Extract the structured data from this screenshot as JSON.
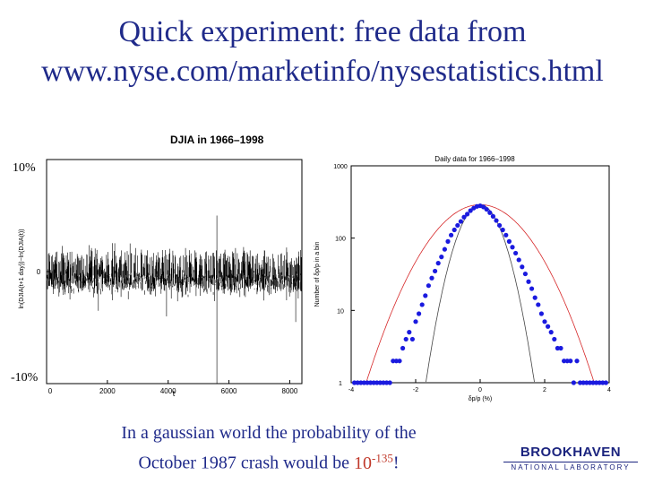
{
  "slide": {
    "title_line1": "Quick experiment: free data from",
    "title_line2": "www.nyse.com/marketinfo/nysestatistics.html",
    "label_top": "10%",
    "label_bottom": "-10%",
    "caption_line1": "In a gaussian world the probability of the",
    "caption_line2_pre": "October 1987 crash would be",
    "caption_base": "10",
    "caption_exp": "-135",
    "caption_bang": "!",
    "logo_main": "BROOKHAVEN",
    "logo_sub": "NATIONAL LABORATORY"
  },
  "chart_data": [
    {
      "type": "line",
      "title": "DJIA in 1966–1998",
      "xlabel": "t",
      "ylabel": "ln(DJIA(t+1 day))−ln(DJIA(t))",
      "xlim": [
        0,
        8400
      ],
      "ylim": [
        -0.1,
        0.1
      ],
      "x_ticks": [
        0,
        2000,
        4000,
        6000,
        8000
      ],
      "x_tick_labels": [
        "0",
        "2000",
        "4000",
        "6000",
        "8000"
      ],
      "y_ticks": [
        0
      ],
      "y_tick_labels": [
        "0"
      ],
      "series_summary": "daily log returns, noise of amplitude about ±0.02 with spikes; largest drop near t=5600",
      "notable_points": [
        {
          "x": 5600,
          "y": -0.1
        },
        {
          "x": 5600,
          "y": 0.05
        },
        {
          "x": 3950,
          "y": -0.04
        },
        {
          "x": 1700,
          "y": -0.035
        },
        {
          "x": 8200,
          "y": -0.045
        }
      ]
    },
    {
      "type": "scatter",
      "title": "Daily data for 1966–1998",
      "xlabel": "δp/p (%)",
      "ylabel": "Number of δp/p in a bin",
      "xlim": [
        -4,
        4
      ],
      "ylim": [
        1,
        1000
      ],
      "yscale": "log",
      "x_ticks": [
        -4,
        -2,
        0,
        2,
        4
      ],
      "x_tick_labels": [
        "-4",
        "-2",
        "0",
        "2",
        "4"
      ],
      "y_ticks": [
        1,
        10,
        100,
        1000
      ],
      "y_tick_labels": [
        "1",
        "10",
        "100",
        "1000"
      ],
      "points": [
        {
          "x": -3.9,
          "y": 1
        },
        {
          "x": -3.8,
          "y": 1
        },
        {
          "x": -3.7,
          "y": 1
        },
        {
          "x": -3.6,
          "y": 1
        },
        {
          "x": -3.5,
          "y": 1
        },
        {
          "x": -3.4,
          "y": 1
        },
        {
          "x": -3.3,
          "y": 1
        },
        {
          "x": -3.2,
          "y": 1
        },
        {
          "x": -3.1,
          "y": 1
        },
        {
          "x": -3.0,
          "y": 1
        },
        {
          "x": -2.9,
          "y": 1
        },
        {
          "x": -2.8,
          "y": 1
        },
        {
          "x": -2.7,
          "y": 2
        },
        {
          "x": -2.6,
          "y": 2
        },
        {
          "x": -2.5,
          "y": 2
        },
        {
          "x": -2.4,
          "y": 3
        },
        {
          "x": -2.3,
          "y": 4
        },
        {
          "x": -2.2,
          "y": 5
        },
        {
          "x": -2.1,
          "y": 4
        },
        {
          "x": -2.0,
          "y": 7
        },
        {
          "x": -1.9,
          "y": 9
        },
        {
          "x": -1.8,
          "y": 12
        },
        {
          "x": -1.7,
          "y": 16
        },
        {
          "x": -1.6,
          "y": 22
        },
        {
          "x": -1.5,
          "y": 28
        },
        {
          "x": -1.4,
          "y": 35
        },
        {
          "x": -1.3,
          "y": 45
        },
        {
          "x": -1.2,
          "y": 55
        },
        {
          "x": -1.1,
          "y": 70
        },
        {
          "x": -1.0,
          "y": 90
        },
        {
          "x": -0.9,
          "y": 110
        },
        {
          "x": -0.8,
          "y": 130
        },
        {
          "x": -0.7,
          "y": 150
        },
        {
          "x": -0.6,
          "y": 170
        },
        {
          "x": -0.5,
          "y": 195
        },
        {
          "x": -0.4,
          "y": 215
        },
        {
          "x": -0.3,
          "y": 240
        },
        {
          "x": -0.2,
          "y": 260
        },
        {
          "x": -0.1,
          "y": 275
        },
        {
          "x": 0.0,
          "y": 280
        },
        {
          "x": 0.1,
          "y": 270
        },
        {
          "x": 0.2,
          "y": 250
        },
        {
          "x": 0.3,
          "y": 225
        },
        {
          "x": 0.4,
          "y": 200
        },
        {
          "x": 0.5,
          "y": 175
        },
        {
          "x": 0.6,
          "y": 150
        },
        {
          "x": 0.7,
          "y": 130
        },
        {
          "x": 0.8,
          "y": 110
        },
        {
          "x": 0.9,
          "y": 90
        },
        {
          "x": 1.0,
          "y": 75
        },
        {
          "x": 1.1,
          "y": 62
        },
        {
          "x": 1.2,
          "y": 50
        },
        {
          "x": 1.3,
          "y": 40
        },
        {
          "x": 1.4,
          "y": 32
        },
        {
          "x": 1.5,
          "y": 25
        },
        {
          "x": 1.6,
          "y": 20
        },
        {
          "x": 1.7,
          "y": 15
        },
        {
          "x": 1.8,
          "y": 12
        },
        {
          "x": 1.9,
          "y": 9
        },
        {
          "x": 2.0,
          "y": 7
        },
        {
          "x": 2.1,
          "y": 6
        },
        {
          "x": 2.2,
          "y": 5
        },
        {
          "x": 2.3,
          "y": 4
        },
        {
          "x": 2.4,
          "y": 3
        },
        {
          "x": 2.5,
          "y": 3
        },
        {
          "x": 2.6,
          "y": 2
        },
        {
          "x": 2.7,
          "y": 2
        },
        {
          "x": 2.8,
          "y": 2
        },
        {
          "x": 2.9,
          "y": 1
        },
        {
          "x": 3.0,
          "y": 2
        },
        {
          "x": 3.1,
          "y": 1
        },
        {
          "x": 3.2,
          "y": 1
        },
        {
          "x": 3.3,
          "y": 1
        },
        {
          "x": 3.4,
          "y": 1
        },
        {
          "x": 3.5,
          "y": 1
        },
        {
          "x": 3.6,
          "y": 1
        },
        {
          "x": 3.7,
          "y": 1
        },
        {
          "x": 3.8,
          "y": 1
        },
        {
          "x": 3.9,
          "y": 1
        }
      ],
      "point_color": "#1a1adf",
      "curves": [
        {
          "color": "#d62728",
          "peak": 290,
          "sigma": 1.05
        },
        {
          "color": "#444444",
          "peak": 290,
          "sigma": 0.5
        }
      ]
    }
  ]
}
